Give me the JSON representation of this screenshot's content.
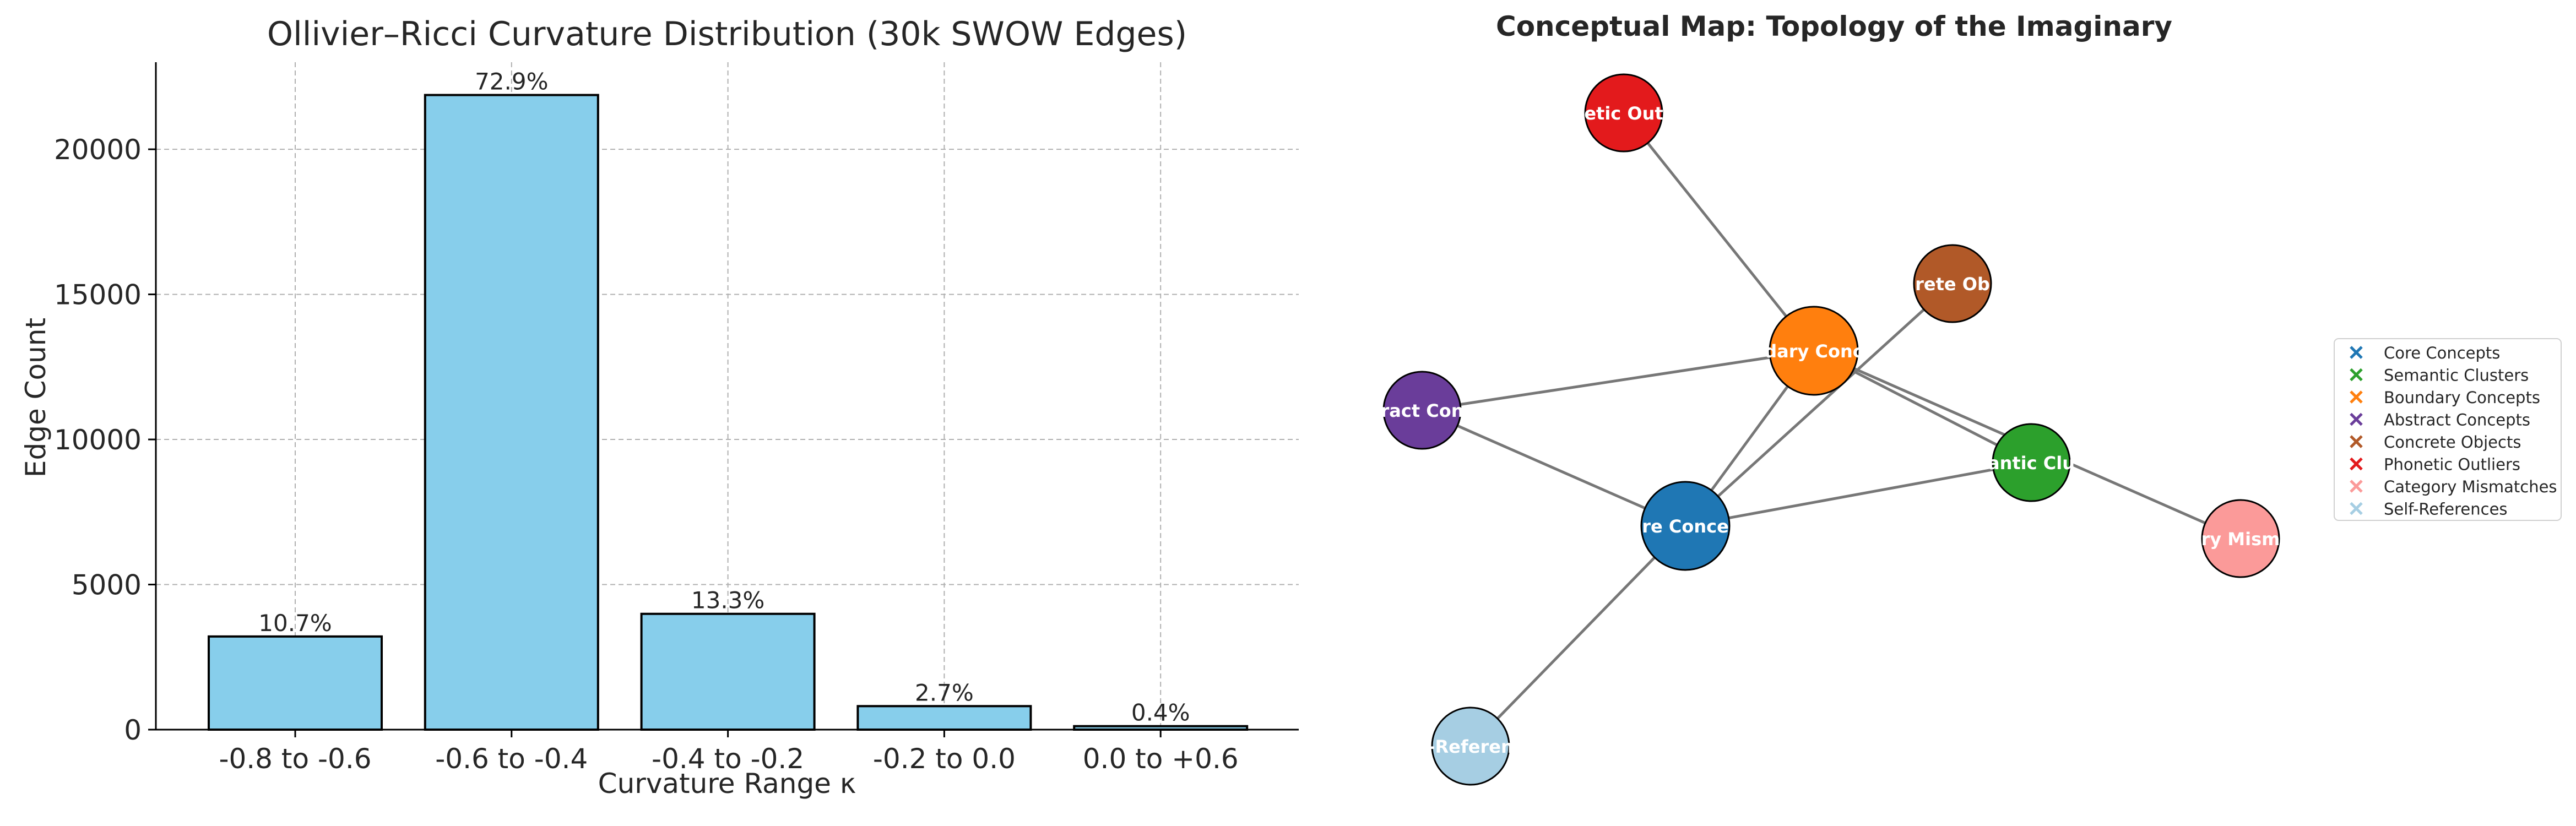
{
  "chart_data": [
    {
      "type": "bar",
      "title": "Ollivier–Ricci Curvature Distribution (30k SWOW Edges)",
      "xlabel": "Curvature Range κ",
      "ylabel": "Edge Count",
      "categories": [
        "-0.8 to -0.6",
        "-0.6 to -0.4",
        "-0.4 to -0.2",
        "-0.2 to 0.0",
        "0.0 to +0.6"
      ],
      "values": [
        3210,
        21870,
        3990,
        810,
        120
      ],
      "data_labels": [
        "10.7%",
        "72.9%",
        "13.3%",
        "2.7%",
        "0.4%"
      ],
      "yticks": [
        0,
        5000,
        10000,
        15000,
        20000
      ],
      "ylim": [
        0,
        23000
      ],
      "grid": true,
      "bar_color": "#87CEEB",
      "edge_color": "#000000"
    },
    {
      "type": "network",
      "title": "Conceptual Map: Topology of the Imaginary",
      "nodes": [
        {
          "id": "core",
          "label": "Core Concepts",
          "color": "#1f77b4"
        },
        {
          "id": "semantic",
          "label": "Semantic Clusters",
          "color": "#2ca02c"
        },
        {
          "id": "boundary",
          "label": "Boundary Concepts",
          "color": "#ff7f0e"
        },
        {
          "id": "abstract",
          "label": "Abstract Concepts",
          "color": "#6a3d9a"
        },
        {
          "id": "concrete",
          "label": "Concrete Objects",
          "color": "#b15928"
        },
        {
          "id": "phonetic",
          "label": "Phonetic Outliers",
          "color": "#e31a1c"
        },
        {
          "id": "mismatch",
          "label": "Category Mismatches",
          "color": "#fb9a99"
        },
        {
          "id": "self",
          "label": "Self-References",
          "color": "#a6cee3"
        }
      ],
      "edges": [
        [
          "phonetic",
          "boundary"
        ],
        [
          "boundary",
          "abstract"
        ],
        [
          "boundary",
          "semantic"
        ],
        [
          "boundary",
          "mismatch"
        ],
        [
          "boundary",
          "core"
        ],
        [
          "concrete",
          "core"
        ],
        [
          "abstract",
          "core"
        ],
        [
          "core",
          "semantic"
        ],
        [
          "core",
          "self"
        ]
      ],
      "legend": [
        {
          "label": "Core Concepts",
          "color": "#1f77b4"
        },
        {
          "label": "Semantic Clusters",
          "color": "#2ca02c"
        },
        {
          "label": "Boundary Concepts",
          "color": "#ff7f0e"
        },
        {
          "label": "Abstract Concepts",
          "color": "#6a3d9a"
        },
        {
          "label": "Concrete Objects",
          "color": "#b15928"
        },
        {
          "label": "Phonetic Outliers",
          "color": "#e31a1c"
        },
        {
          "label": "Category Mismatches",
          "color": "#fb9a99"
        },
        {
          "label": "Self-References",
          "color": "#a6cee3"
        }
      ],
      "legend_position": "right"
    }
  ]
}
